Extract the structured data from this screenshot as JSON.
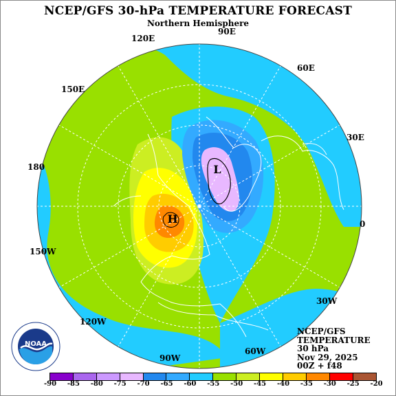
{
  "title": "NCEP/GFS 30-hPa TEMPERATURE FORECAST",
  "subtitle": "Northern Hemisphere",
  "longitude_labels": [
    {
      "id": "90e",
      "text": "90E"
    },
    {
      "id": "60e",
      "text": "60E"
    },
    {
      "id": "30e",
      "text": "30E"
    },
    {
      "id": "0",
      "text": "0"
    },
    {
      "id": "30w",
      "text": "30W"
    },
    {
      "id": "60w",
      "text": "60W"
    },
    {
      "id": "90w",
      "text": "90W"
    },
    {
      "id": "120w",
      "text": "120W"
    },
    {
      "id": "150w",
      "text": "150W"
    },
    {
      "id": "180",
      "text": "180"
    },
    {
      "id": "150e",
      "text": "150E"
    },
    {
      "id": "120e",
      "text": "120E"
    }
  ],
  "pressure_centers": {
    "low": "L",
    "high": "H"
  },
  "info_box": {
    "line1": "NCEP/GFS",
    "line2": "TEMPERATURE",
    "line3": "30 hPa",
    "line4": "Nov 29, 2025",
    "line5": "00Z + f48"
  },
  "logo": {
    "icon": "noaa-logo-icon",
    "text": "NOAA"
  },
  "colorbar": {
    "ticks": [
      "-90",
      "-85",
      "-80",
      "-75",
      "-70",
      "-65",
      "-60",
      "-55",
      "-50",
      "-45",
      "-40",
      "-35",
      "-30",
      "-25",
      "-20"
    ],
    "colors": [
      "#8800cc",
      "#aa66ee",
      "#cc99ff",
      "#e8b8ff",
      "#2288ee",
      "#33aaff",
      "#22ccff",
      "#99e000",
      "#ccee22",
      "#ffff00",
      "#ffcc00",
      "#ff8800",
      "#ff0000",
      "#aa5533"
    ]
  },
  "colors": {
    "ocean_cyan": "#22ccff",
    "green": "#99e000",
    "light_green": "#ccee22",
    "yellow": "#ffff00",
    "orange": "#ffcc00",
    "dark_orange": "#ff8800",
    "blue1": "#33aaff",
    "blue2": "#2288ee",
    "lavender": "#e8b8ff"
  }
}
